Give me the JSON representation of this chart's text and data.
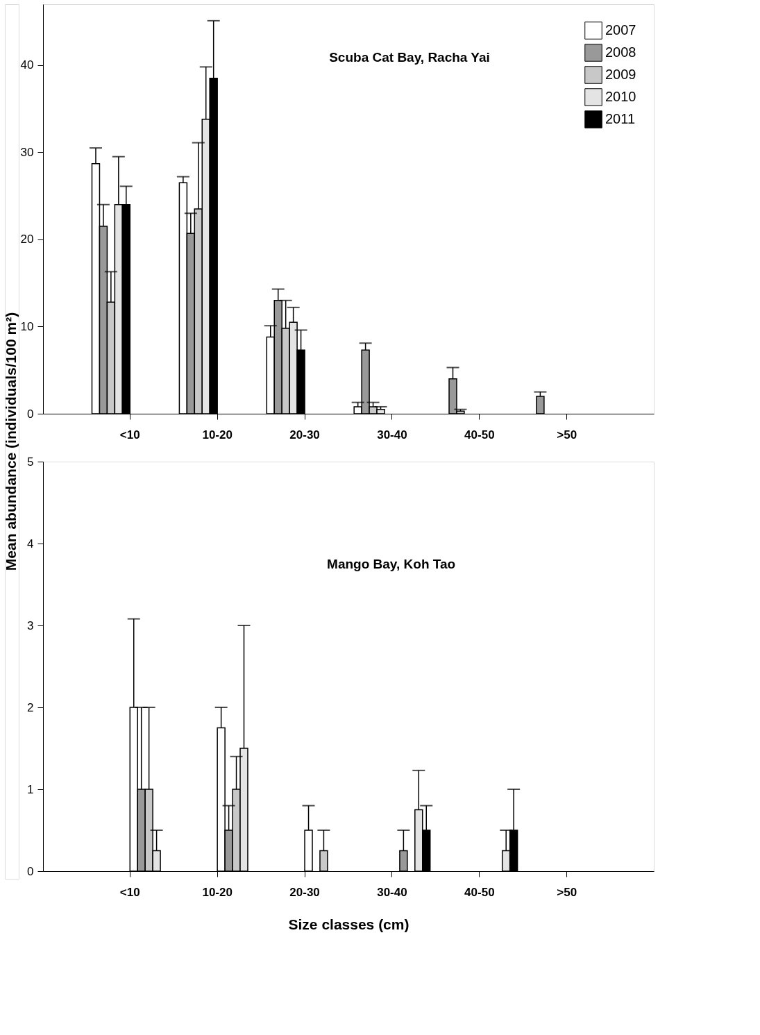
{
  "chart_data": [
    {
      "type": "bar",
      "title": "Scuba Cat Bay, Racha Yai",
      "ylabel": "Mean abundance (individuals/100 m²)",
      "categories": [
        "<10",
        "10-20",
        "20-30",
        "30-40",
        "40-50",
        ">50"
      ],
      "ylim": [
        0,
        47
      ],
      "yticks": [
        0,
        10,
        20,
        30,
        40
      ],
      "legend": "top right",
      "grid": false,
      "series": [
        {
          "name": "2007",
          "color": "#ffffff",
          "values": [
            28.7,
            26.5,
            8.8,
            0.8,
            null,
            null
          ],
          "errors": [
            1.8,
            0.7,
            1.3,
            0.5,
            null,
            null
          ]
        },
        {
          "name": "2008",
          "color": "#999999",
          "values": [
            21.5,
            20.7,
            13.0,
            7.3,
            4.0,
            2.0
          ],
          "errors": [
            2.5,
            2.3,
            1.3,
            0.8,
            1.3,
            0.5
          ]
        },
        {
          "name": "2009",
          "color": "#c8c8c8",
          "values": [
            12.8,
            23.5,
            9.8,
            0.8,
            0.3,
            null
          ],
          "errors": [
            3.5,
            7.6,
            3.2,
            0.5,
            0.2,
            null
          ]
        },
        {
          "name": "2010",
          "color": "#e4e4e4",
          "values": [
            24.0,
            33.8,
            10.5,
            0.5,
            null,
            null
          ],
          "errors": [
            5.5,
            6.0,
            1.7,
            0.3,
            null,
            null
          ]
        },
        {
          "name": "2011",
          "color": "#000000",
          "values": [
            24.0,
            38.5,
            7.3,
            null,
            null,
            null
          ],
          "errors": [
            2.1,
            6.6,
            2.3,
            null,
            null,
            null
          ]
        }
      ]
    },
    {
      "type": "bar",
      "title": "Mango Bay, Koh Tao",
      "xlabel": "Size classes (cm)",
      "categories": [
        "<10",
        "10-20",
        "20-30",
        "30-40",
        "40-50",
        ">50"
      ],
      "ylim": [
        0,
        5
      ],
      "yticks": [
        0,
        1,
        2,
        3,
        4,
        5
      ],
      "legend": false,
      "grid": false,
      "series": [
        {
          "color": "#ffffff",
          "values": [
            2.0,
            1.75,
            0.5,
            null,
            null,
            null
          ],
          "errors": [
            1.08,
            0.25,
            0.3,
            null,
            null,
            null
          ]
        },
        {
          "color": "#999999",
          "values": [
            1.0,
            0.5,
            null,
            0.25,
            null,
            null
          ],
          "errors": [
            1.0,
            0.3,
            null,
            0.25,
            null,
            null
          ]
        },
        {
          "color": "#c8c8c8",
          "values": [
            1.0,
            1.0,
            0.25,
            null,
            null,
            null
          ],
          "errors": [
            1.0,
            0.4,
            0.25,
            null,
            null,
            null
          ]
        },
        {
          "color": "#e4e4e4",
          "values": [
            0.25,
            1.5,
            null,
            0.75,
            0.25,
            null
          ],
          "errors": [
            0.25,
            1.5,
            null,
            0.48,
            0.25,
            null
          ]
        },
        {
          "color": "#000000",
          "values": [
            null,
            null,
            null,
            0.5,
            0.5,
            null
          ],
          "errors": [
            null,
            null,
            null,
            0.3,
            0.5,
            null
          ]
        }
      ]
    }
  ]
}
